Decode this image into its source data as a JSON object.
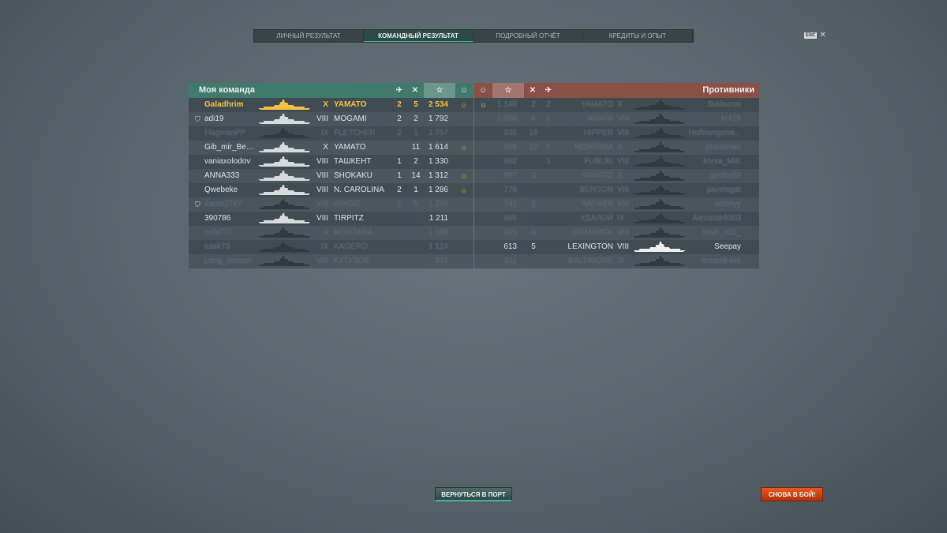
{
  "tabs": [
    "ЛИЧНЫЙ РЕЗУЛЬТАТ",
    "КОМАНДНЫЙ РЕЗУЛЬТАТ",
    "ПОДРОБНЫЙ ОТЧЁТ",
    "КРЕДИТЫ И ОПЫТ"
  ],
  "active_tab": 1,
  "esc": {
    "key": "ESC",
    "close": "✕"
  },
  "my_team": {
    "title": "Моя команда",
    "header_icons": [
      "plane-kill-icon",
      "ship-kill-icon",
      "star-icon",
      "medal-icon"
    ],
    "rows": [
      {
        "player": "Galadhrim",
        "tier": "X",
        "ship": "YAMATO",
        "planes": "2",
        "kills": "5",
        "score": "2 534",
        "medal": true,
        "state": "me",
        "badge": ""
      },
      {
        "player": "adi19",
        "tier": "VIII",
        "ship": "MOGAMI",
        "planes": "2",
        "kills": "2",
        "score": "1 792",
        "medal": false,
        "state": "alive",
        "badge": "division"
      },
      {
        "player": "FlagmanPP",
        "tier": "IX",
        "ship": "FLETCHER",
        "planes": "2",
        "kills": "1",
        "score": "1 757",
        "medal": false,
        "state": "dead",
        "badge": ""
      },
      {
        "player": "Gib_mir_Ben...",
        "tier": "X",
        "ship": "YAMATO",
        "planes": "",
        "kills": "11",
        "score": "1 614",
        "medal": true,
        "state": "alive",
        "badge": ""
      },
      {
        "player": "vaniaxolodov",
        "tier": "VIII",
        "ship": "ТАШКЕНТ",
        "planes": "1",
        "kills": "2",
        "score": "1 330",
        "medal": false,
        "state": "alive",
        "badge": ""
      },
      {
        "player": "ANNA333",
        "tier": "VIII",
        "ship": "SHOKAKU",
        "planes": "1",
        "kills": "14",
        "score": "1 312",
        "medal": true,
        "state": "alive",
        "badge": ""
      },
      {
        "player": "Qwebeke",
        "tier": "VIII",
        "ship": "N. CAROLINA",
        "planes": "2",
        "kills": "1",
        "score": "1 286",
        "medal": true,
        "state": "alive",
        "badge": ""
      },
      {
        "player": "dante2747",
        "tier": "VIII",
        "ship": "ATAGO",
        "planes": "1",
        "kills": "5",
        "score": "1 285",
        "medal": false,
        "state": "dead",
        "badge": "division"
      },
      {
        "player": "390786",
        "tier": "VIII",
        "ship": "TIRPITZ",
        "planes": "",
        "kills": "",
        "score": "1 211",
        "medal": false,
        "state": "alive",
        "badge": ""
      },
      {
        "player": "nofx777",
        "tier": "X",
        "ship": "MONTANA",
        "planes": "",
        "kills": "",
        "score": "1 168",
        "medal": false,
        "state": "dead",
        "badge": ""
      },
      {
        "player": "tulak73",
        "tier": "IX",
        "ship": "KAGERO",
        "planes": "",
        "kills": "",
        "score": "1 124",
        "medal": false,
        "state": "dead",
        "badge": ""
      },
      {
        "player": "Long_Jonson",
        "tier": "VIII",
        "ship": "КУТУЗОВ",
        "planes": "",
        "kills": "",
        "score": "372",
        "medal": false,
        "state": "dead",
        "badge": ""
      }
    ]
  },
  "enemies": {
    "title": "Противники",
    "header_icons": [
      "medal-icon",
      "star-icon",
      "ship-kill-icon",
      "plane-kill-icon"
    ],
    "rows": [
      {
        "player": "StAlaxrus",
        "tier": "X",
        "ship": "YAMATO",
        "kills": "2",
        "planes": "2",
        "score": "1 140",
        "medal": true,
        "state": "dead"
      },
      {
        "player": "kr415",
        "tier": "VIII",
        "ship": "AMAGI",
        "kills": "4",
        "planes": "1",
        "score": "1 068",
        "medal": false,
        "state": "dead"
      },
      {
        "player": "Hoffnungslos...",
        "tier": "VIII",
        "ship": "HIPPER",
        "kills": "16",
        "planes": "",
        "score": "935",
        "medal": false,
        "state": "dead"
      },
      {
        "player": "proudman",
        "tier": "X",
        "ship": "MONTANA",
        "kills": "17",
        "planes": "1",
        "score": "926",
        "medal": false,
        "state": "dead"
      },
      {
        "player": "korsa_MIK",
        "tier": "VIII",
        "ship": "FUBUKI",
        "kills": "",
        "planes": "1",
        "score": "902",
        "medal": false,
        "state": "dead"
      },
      {
        "player": "genby59",
        "tier": "X",
        "ship": "YAMATO",
        "kills": "3",
        "planes": "",
        "score": "897",
        "medal": false,
        "state": "dead"
      },
      {
        "player": "pavelagat",
        "tier": "VIII",
        "ship": "BENSON",
        "kills": "",
        "planes": "",
        "score": "776",
        "medal": false,
        "state": "dead"
      },
      {
        "player": "skinnyy",
        "tier": "VIII",
        "ship": "ЧАПАЕВ",
        "kills": "2",
        "planes": "",
        "score": "742",
        "medal": false,
        "state": "dead"
      },
      {
        "player": "Alexandr8303",
        "tier": "IX",
        "ship": "УДАЛОЙ",
        "kills": "",
        "planes": "",
        "score": "696",
        "medal": false,
        "state": "dead"
      },
      {
        "player": "WaR_KiD_",
        "tier": "VIII",
        "ship": "BISMARCK",
        "kills": "8",
        "planes": "",
        "score": "625",
        "medal": false,
        "state": "dead"
      },
      {
        "player": "Seepay",
        "tier": "VIII",
        "ship": "LEXINGTON",
        "kills": "5",
        "planes": "",
        "score": "613",
        "medal": false,
        "state": "alive"
      },
      {
        "player": "temasik4ek",
        "tier": "IX",
        "ship": "BALTIMORE",
        "kills": "",
        "planes": "",
        "score": "611",
        "medal": false,
        "state": "dead"
      }
    ]
  },
  "buttons": {
    "port": "ВЕРНУТЬСЯ В ПОРТ",
    "battle": "СНОВА В БОЙ!"
  },
  "colors": {
    "my_team": "#3f7a6c",
    "enemies": "#8a4f46",
    "player": "#f2c244",
    "battle_button": "#d04a18"
  }
}
